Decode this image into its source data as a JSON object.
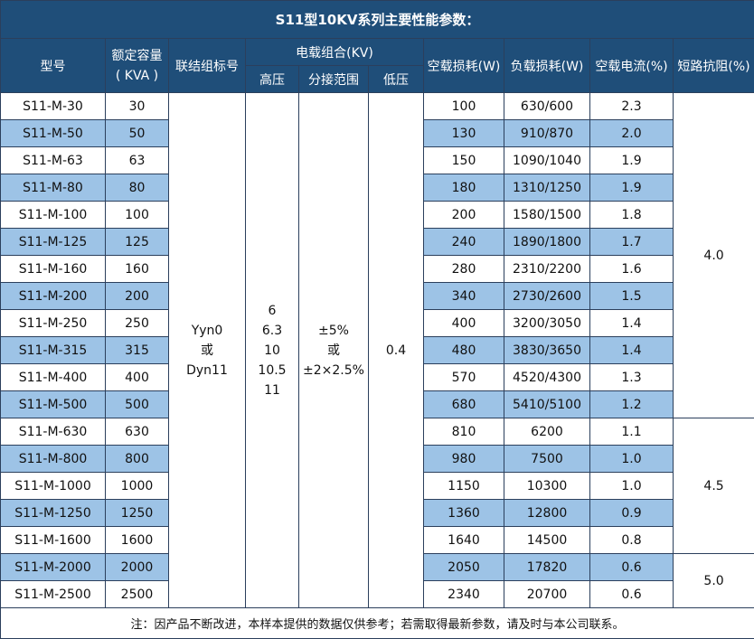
{
  "title": "S11型10KV系列主要性能参数：",
  "header": {
    "model": "型号",
    "capacity": [
      "额定容量",
      "( KVA )"
    ],
    "connection": "联结组标号",
    "voltage_group": "电载组合(KV)",
    "high": "高压",
    "tap": "分接范围",
    "low": "低压",
    "no_load_loss": "空载损耗(W)",
    "load_loss": "负载损耗(W)",
    "no_load_current": "空载电流(%)",
    "impedance": "短路抗阻(%)"
  },
  "rows": [
    [
      "S11-M-30",
      "30",
      "100",
      "630/600",
      "2.3"
    ],
    [
      "S11-M-50",
      "50",
      "130",
      "910/870",
      "2.0"
    ],
    [
      "S11-M-63",
      "63",
      "150",
      "1090/1040",
      "1.9"
    ],
    [
      "S11-M-80",
      "80",
      "180",
      "1310/1250",
      "1.9"
    ],
    [
      "S11-M-100",
      "100",
      "200",
      "1580/1500",
      "1.8"
    ],
    [
      "S11-M-125",
      "125",
      "240",
      "1890/1800",
      "1.7"
    ],
    [
      "S11-M-160",
      "160",
      "280",
      "2310/2200",
      "1.6"
    ],
    [
      "S11-M-200",
      "200",
      "340",
      "2730/2600",
      "1.5"
    ],
    [
      "S11-M-250",
      "250",
      "400",
      "3200/3050",
      "1.4"
    ],
    [
      "S11-M-315",
      "315",
      "480",
      "3830/3650",
      "1.4"
    ],
    [
      "S11-M-400",
      "400",
      "570",
      "4520/4300",
      "1.3"
    ],
    [
      "S11-M-500",
      "500",
      "680",
      "5410/5100",
      "1.2"
    ],
    [
      "S11-M-630",
      "630",
      "810",
      "6200",
      "1.1"
    ],
    [
      "S11-M-800",
      "800",
      "980",
      "7500",
      "1.0"
    ],
    [
      "S11-M-1000",
      "1000",
      "1150",
      "10300",
      "1.0"
    ],
    [
      "S11-M-1250",
      "1250",
      "1360",
      "12800",
      "0.9"
    ],
    [
      "S11-M-1600",
      "1600",
      "1640",
      "14500",
      "0.8"
    ],
    [
      "S11-M-2000",
      "2000",
      "2050",
      "17820",
      "0.6"
    ],
    [
      "S11-M-2500",
      "2500",
      "2340",
      "20700",
      "0.6"
    ]
  ],
  "connection": [
    "Yyn0",
    "或",
    "Dyn11"
  ],
  "high_voltage": [
    "6",
    "6.3",
    "10",
    "10.5",
    "11"
  ],
  "tap_range": [
    "±5%",
    "或",
    "±2×2.5%"
  ],
  "low_voltage": "0.4",
  "impedance": [
    "4.0",
    "4.5",
    "5.0"
  ],
  "note": "注：因产品不断改进，本样本提供的数据仅供参考；若需取得最新参数，请及时与本公司联系。"
}
